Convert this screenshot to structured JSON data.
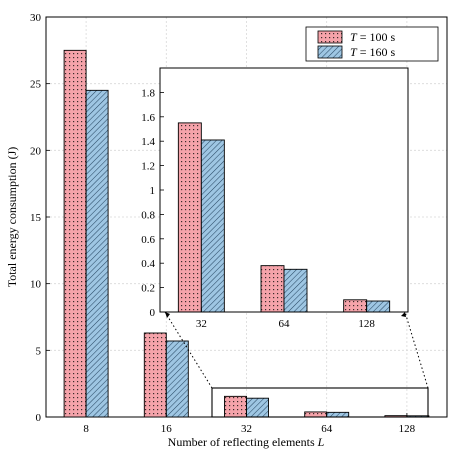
{
  "chart_data": [
    {
      "type": "bar",
      "role": "main",
      "categories": [
        "8",
        "16",
        "32",
        "64",
        "128"
      ],
      "series": [
        {
          "name": "T = 100 s",
          "values": [
            27.5,
            6.3,
            1.55,
            0.38,
            0.1
          ],
          "color": "#f5a3aa"
        },
        {
          "name": "T = 160 s",
          "values": [
            24.5,
            5.7,
            1.41,
            0.35,
            0.09
          ],
          "color": "#9ec6e3"
        }
      ],
      "xlabel": "Number of reflecting elements L",
      "ylabel": "Total energy consumption (J)",
      "ylim": [
        0,
        30
      ],
      "yticks": [
        "0",
        "5",
        "10",
        "15",
        "20",
        "25",
        "30"
      ],
      "grid": true,
      "legend": "top-right"
    },
    {
      "type": "bar",
      "role": "inset",
      "categories": [
        "32",
        "64",
        "128"
      ],
      "series": [
        {
          "name": "T = 100 s",
          "values": [
            1.55,
            0.38,
            0.1
          ],
          "color": "#f5a3aa"
        },
        {
          "name": "T = 160 s",
          "values": [
            1.41,
            0.35,
            0.09
          ],
          "color": "#9ec6e3"
        }
      ],
      "ylim": [
        0,
        2
      ],
      "yticks": [
        "0",
        "0.2",
        "0.4",
        "0.6",
        "0.8",
        "1",
        "1.2",
        "1.4",
        "1.6",
        "1.8"
      ],
      "grid": false
    }
  ],
  "legend": {
    "items": [
      {
        "italic": "T",
        "rest": " = 100 s"
      },
      {
        "italic": "T",
        "rest": " = 160 s"
      }
    ]
  },
  "axis_text": {
    "xlabel_main": "Number of reflecting elements ",
    "xlabel_var": "L",
    "ylabel": "Total energy consumption (J)"
  }
}
